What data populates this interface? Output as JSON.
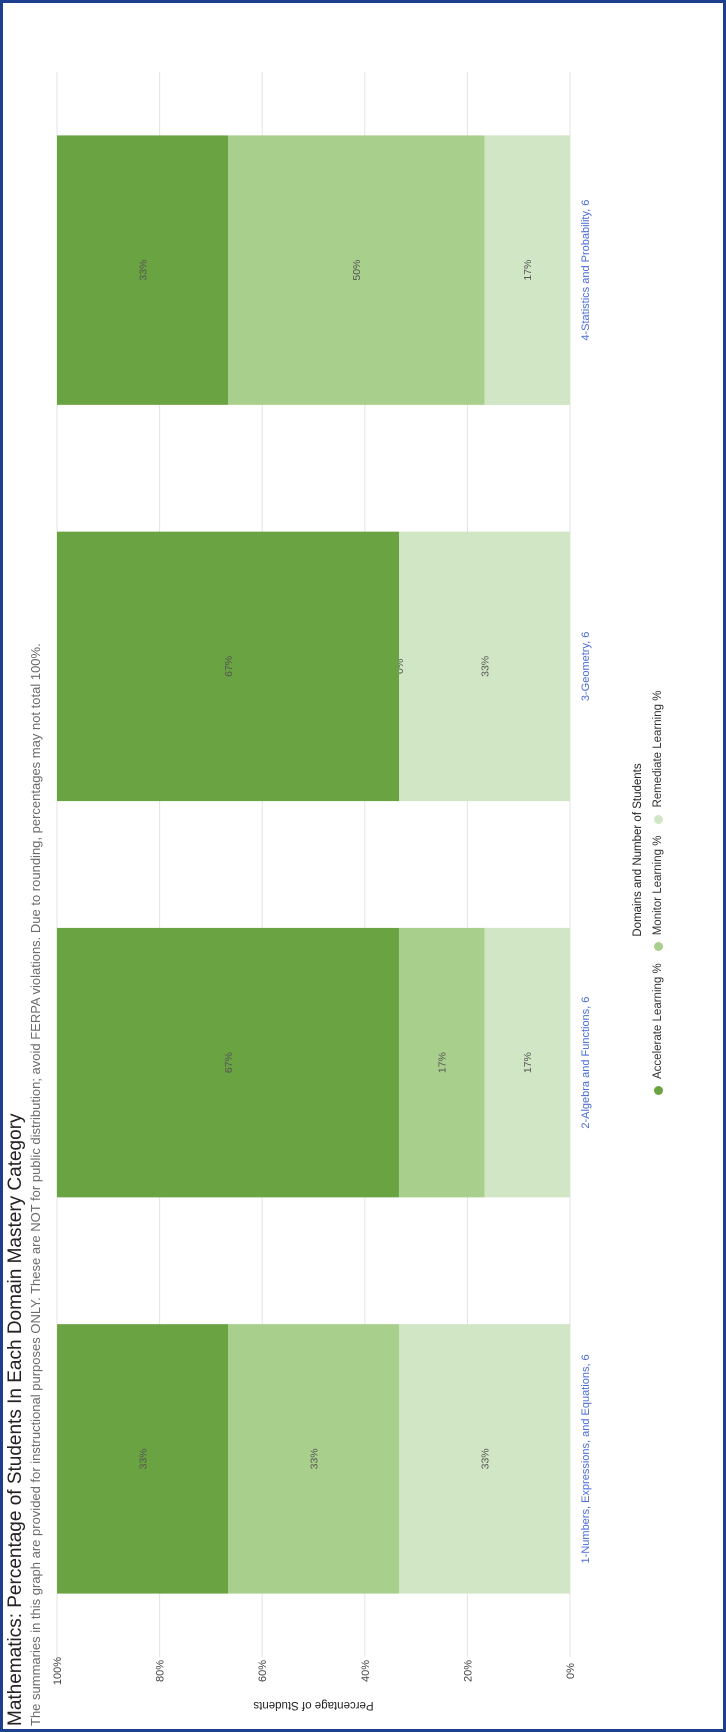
{
  "chart_data": {
    "type": "bar",
    "stacked": true,
    "orientation": "vertical",
    "title": "Mathematics: Percentage of Students In Each Domain Mastery Category",
    "subtitle": "The summaries in this graph are provided for instructional purposes ONLY. These are NOT for public distribution; avoid FERPA violations. Due to rounding, percentages may not total 100%.",
    "ylabel": "Percentage of Students",
    "xlabel": "Domains and Number of Students",
    "ylim": [
      0,
      100
    ],
    "yticks": [
      "0%",
      "20%",
      "40%",
      "60%",
      "80%",
      "100%"
    ],
    "grid": true,
    "legend_position": "bottom",
    "categories": [
      "1-Numbers, Expressions, and Equations, 6",
      "2-Algebra and Functions, 6",
      "3-Geometry, 6",
      "4-Statistics and Probability, 6"
    ],
    "series": [
      {
        "name": "Remediate Learning %",
        "color": "#d1e6c5",
        "values": [
          33.33,
          16.67,
          33.33,
          16.67
        ],
        "labels": [
          "33%",
          "17%",
          "33%",
          "17%"
        ]
      },
      {
        "name": "Monitor Learning %",
        "color": "#a9cf8d",
        "values": [
          33.33,
          16.67,
          0,
          50
        ],
        "labels": [
          "33%",
          "17%",
          "0%",
          "50%"
        ]
      },
      {
        "name": "Accelerate Learning %",
        "color": "#6aa342",
        "values": [
          33.33,
          66.67,
          66.67,
          33.33
        ],
        "labels": [
          "33%",
          "67%",
          "67%",
          "33%"
        ]
      }
    ]
  },
  "colors": {
    "category_label": "#4a6bd6",
    "frame_border": "#1d3f8f"
  }
}
